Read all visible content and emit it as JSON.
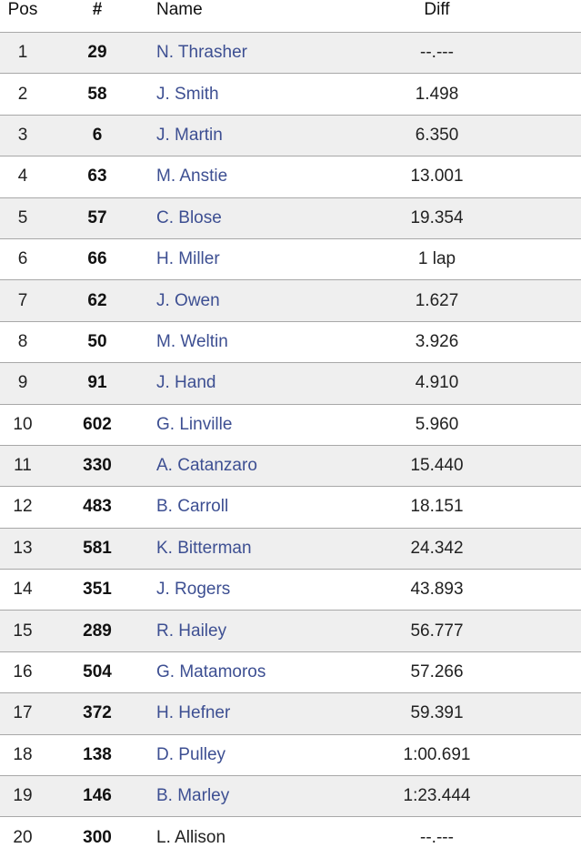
{
  "headers": {
    "pos": "Pos",
    "num": "#",
    "name": "Name",
    "diff": "Diff"
  },
  "rows": [
    {
      "pos": "1",
      "num": "29",
      "name": "N. Thrasher",
      "diff": "--.---",
      "link": true
    },
    {
      "pos": "2",
      "num": "58",
      "name": "J. Smith",
      "diff": "1.498",
      "link": true
    },
    {
      "pos": "3",
      "num": "6",
      "name": "J. Martin",
      "diff": "6.350",
      "link": true
    },
    {
      "pos": "4",
      "num": "63",
      "name": "M. Anstie",
      "diff": "13.001",
      "link": true
    },
    {
      "pos": "5",
      "num": "57",
      "name": "C. Blose",
      "diff": "19.354",
      "link": true
    },
    {
      "pos": "6",
      "num": "66",
      "name": "H. Miller",
      "diff": "1 lap",
      "link": true
    },
    {
      "pos": "7",
      "num": "62",
      "name": "J. Owen",
      "diff": "1.627",
      "link": true
    },
    {
      "pos": "8",
      "num": "50",
      "name": "M. Weltin",
      "diff": "3.926",
      "link": true
    },
    {
      "pos": "9",
      "num": "91",
      "name": "J. Hand",
      "diff": "4.910",
      "link": true
    },
    {
      "pos": "10",
      "num": "602",
      "name": "G. Linville",
      "diff": "5.960",
      "link": true
    },
    {
      "pos": "11",
      "num": "330",
      "name": "A. Catanzaro",
      "diff": "15.440",
      "link": true
    },
    {
      "pos": "12",
      "num": "483",
      "name": "B. Carroll",
      "diff": "18.151",
      "link": true
    },
    {
      "pos": "13",
      "num": "581",
      "name": "K. Bitterman",
      "diff": "24.342",
      "link": true
    },
    {
      "pos": "14",
      "num": "351",
      "name": "J. Rogers",
      "diff": "43.893",
      "link": true
    },
    {
      "pos": "15",
      "num": "289",
      "name": "R. Hailey",
      "diff": "56.777",
      "link": true
    },
    {
      "pos": "16",
      "num": "504",
      "name": "G. Matamoros",
      "diff": "57.266",
      "link": true
    },
    {
      "pos": "17",
      "num": "372",
      "name": "H. Hefner",
      "diff": "59.391",
      "link": true
    },
    {
      "pos": "18",
      "num": "138",
      "name": "D. Pulley",
      "diff": "1:00.691",
      "link": true
    },
    {
      "pos": "19",
      "num": "146",
      "name": "B. Marley",
      "diff": "1:23.444",
      "link": true
    },
    {
      "pos": "20",
      "num": "300",
      "name": "L. Allison",
      "diff": "--.---",
      "link": false
    }
  ],
  "colors": {
    "link": "#3d4f92",
    "stripe": "#efefef",
    "border": "#a8a8a8"
  }
}
